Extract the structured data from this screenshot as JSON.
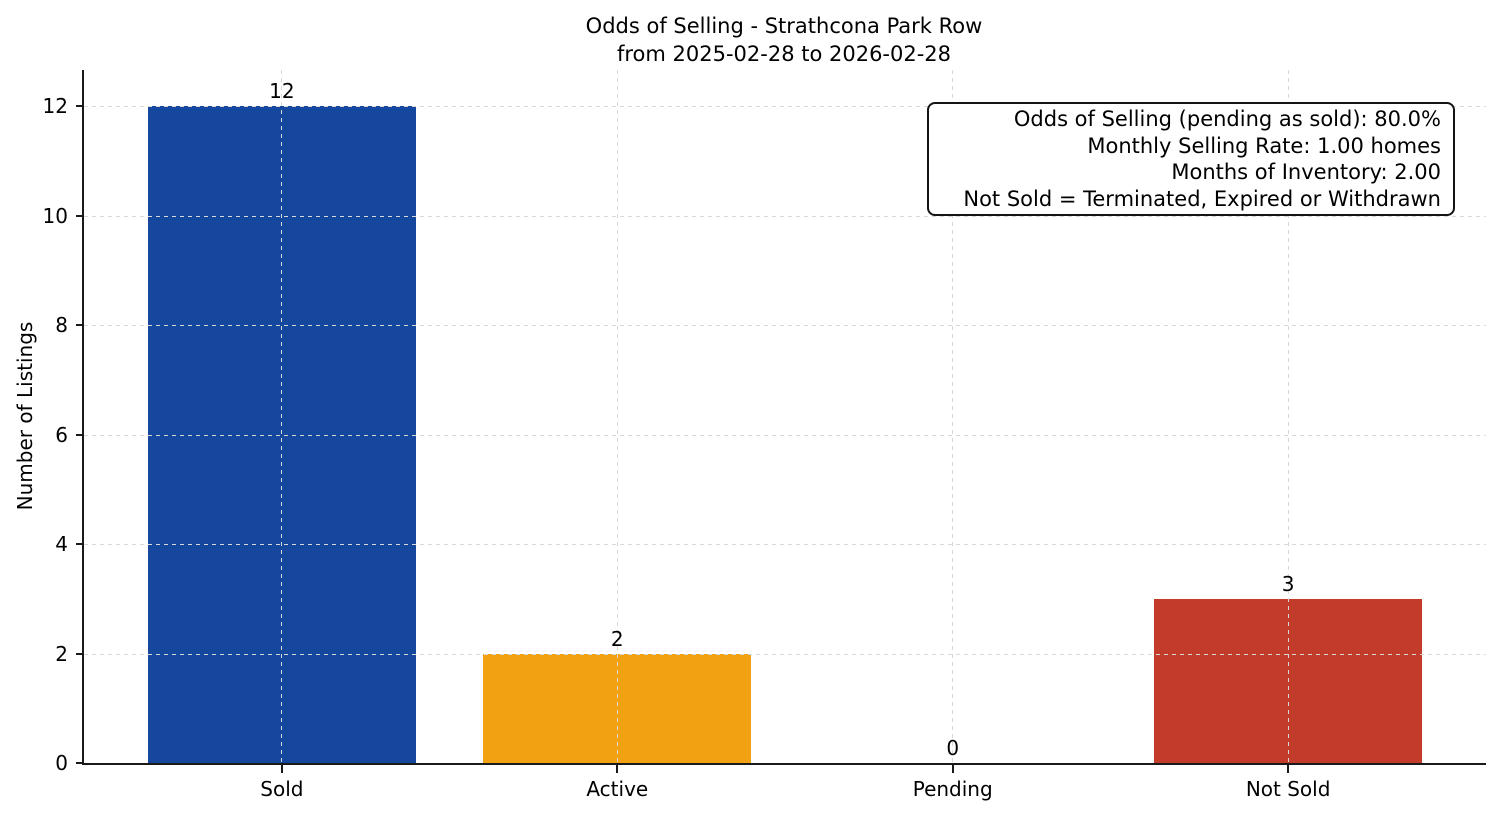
{
  "chart_data": {
    "type": "bar",
    "title": "Odds of Selling - Strathcona Park Row\nfrom 2025-02-28 to 2026-02-28",
    "title_lines": [
      "Odds of Selling - Strathcona Park Row",
      "from 2025-02-28 to 2026-02-28"
    ],
    "categories": [
      "Sold",
      "Active",
      "Pending",
      "Not Sold"
    ],
    "values": [
      12,
      2,
      0,
      3
    ],
    "bar_colors": [
      "#15479f",
      "#f2a112",
      null,
      "#c23b2b"
    ],
    "xlabel": "",
    "ylabel": "Number of Listings",
    "ylim": [
      0,
      12.66
    ],
    "yticks": [
      0,
      2,
      4,
      6,
      8,
      10,
      12
    ],
    "grid": true,
    "grid_style": "dashed",
    "legend_position": "none",
    "annotation_box": {
      "position": "top-right",
      "lines": [
        "Odds of Selling (pending as sold): 80.0%",
        "Monthly Selling Rate: 1.00 homes",
        "Months of Inventory: 2.00",
        "Not Sold = Terminated, Expired or Withdrawn"
      ]
    },
    "colors": {
      "grid": "#d8d8d8",
      "axis": "#1a1a1a",
      "text": "#000000",
      "background": "#ffffff"
    }
  }
}
